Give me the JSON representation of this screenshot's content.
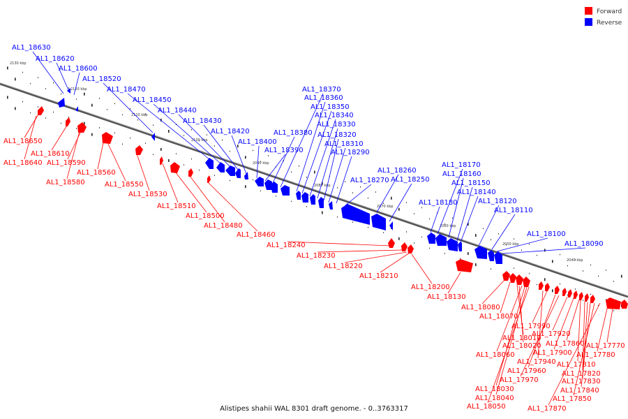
{
  "legend": {
    "forward": {
      "label": "Forward",
      "color": "#ff0000"
    },
    "reverse": {
      "label": "Reverse",
      "color": "#0000ff"
    }
  },
  "caption": "Alistipes shahii WAL 8301 draft genome. - 0..3763317",
  "ticks": [
    "2130 kbp",
    "2120 kbp",
    "2110 kbp",
    "2100 kbp",
    "2090 kbp",
    "2080 kbp",
    "2070 kbp",
    "2060 kbp",
    "2050 kbp",
    "2040 kbp"
  ],
  "reverse_labels": [
    "AL1_18630",
    "AL1_18620",
    "AL1_18600",
    "AL1_18520",
    "AL1_18470",
    "AL1_18450",
    "AL1_18440",
    "AL1_18430",
    "AL1_18420",
    "AL1_18400",
    "AL1_18390",
    "AL1_18380",
    "AL1_18370",
    "AL1_18360",
    "AL1_18350",
    "AL1_18340",
    "AL1_18330",
    "AL1_18320",
    "AL1_18310",
    "AL1_18290",
    "AL1_18270",
    "AL1_18260",
    "AL1_18250",
    "AL1_18180",
    "AL1_18170",
    "AL1_18160",
    "AL1_18150",
    "AL1_18140",
    "AL1_18120",
    "AL1_18110",
    "AL1_18100",
    "AL1_18090"
  ],
  "forward_labels": [
    "AL1_18650",
    "AL1_18640",
    "AL1_18610",
    "AL1_18590",
    "AL1_18580",
    "AL1_18560",
    "AL1_18550",
    "AL1_18530",
    "AL1_18510",
    "AL1_18500",
    "AL1_18480",
    "AL1_18460",
    "AL1_18240",
    "AL1_18230",
    "AL1_18220",
    "AL1_18210",
    "AL1_18200",
    "AL1_18130",
    "AL1_18080",
    "AL1_18070",
    "AL1_17990",
    "AL1_18010",
    "AL1_18020",
    "AL1_18060",
    "AL1_17960",
    "AL1_17970",
    "AL1_17940",
    "AL1_17920",
    "AL1_17900",
    "AL1_17860",
    "AL1_17810",
    "AL1_17820",
    "AL1_17830",
    "AL1_17840",
    "AL1_17850",
    "AL1_17870",
    "AL1_17770",
    "AL1_17780",
    "AL1_18030",
    "AL1_18040",
    "AL1_18050"
  ]
}
